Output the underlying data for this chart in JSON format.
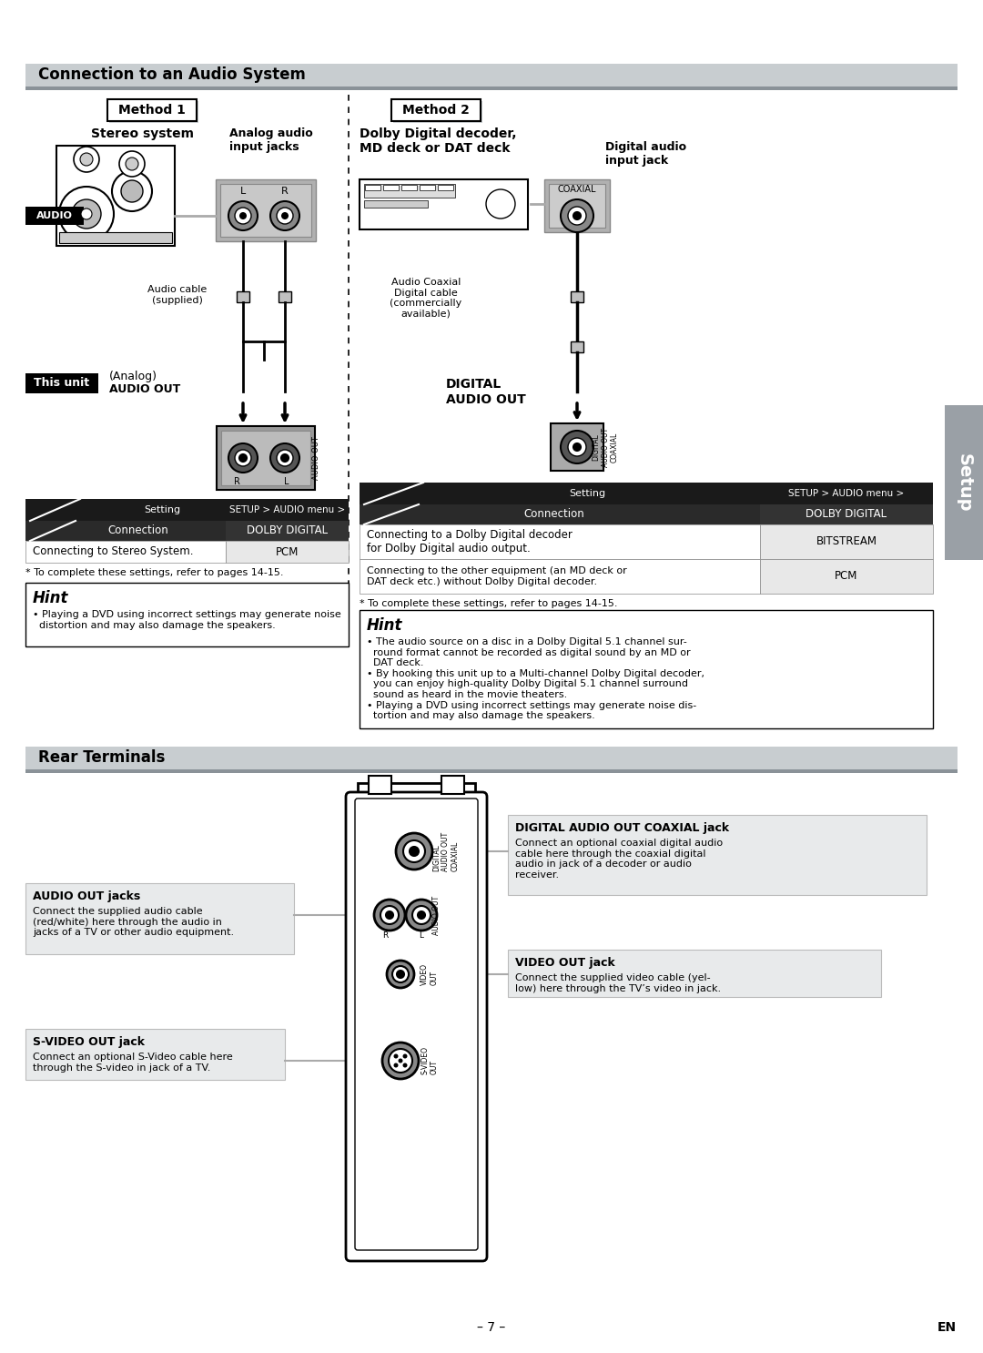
{
  "page_bg": "#ffffff",
  "section1_title": "Connection to an Audio System",
  "section2_title": "Rear Terminals",
  "method1_label": "Method 1",
  "method2_label": "Method 2",
  "stereo_system_label": "Stereo system",
  "analog_audio_label": "Analog audio\ninput jacks",
  "audio_label": "AUDIO",
  "audio_cable_label": "Audio cable\n(supplied)",
  "this_unit_label": "This unit",
  "dolby_label": "Dolby Digital decoder,\nMD deck or DAT deck",
  "digital_audio_label": "Digital audio\ninput jack",
  "coaxial_label": "COAXIAL",
  "audio_coaxial_label": "Audio Coaxial\nDigital cable\n(commercially\navailable)",
  "digital_audio_out_label": "DIGITAL\nAUDIO OUT",
  "setup_tab_label": "Setup",
  "table1_header_setting": "Setting",
  "table1_header_menu": "SETUP > AUDIO menu >",
  "table1_col1": "Connection",
  "table1_col2": "DOLBY DIGITAL",
  "table1_row1_c1": "Connecting to Stereo System.",
  "table1_row1_c2": "PCM",
  "table1_note": "* To complete these settings, refer to pages 14-15.",
  "hint1_title": "Hint",
  "hint1_bullet": "• Playing a DVD using incorrect settings may generate noise\n  distortion and may also damage the speakers.",
  "table2_header_setting": "Setting",
  "table2_header_menu": "SETUP > AUDIO menu >",
  "table2_col1": "Connection",
  "table2_col2": "DOLBY DIGITAL",
  "table2_row1_c1": "Connecting to a Dolby Digital decoder\nfor Dolby Digital audio output.",
  "table2_row1_c2": "BITSTREAM",
  "table2_row2_c1": "Connecting to the other equipment (an MD deck or\nDAT deck etc.) without Dolby Digital decoder.",
  "table2_row2_c2": "PCM",
  "table2_note": "* To complete these settings, refer to pages 14-15.",
  "hint2_title": "Hint",
  "hint2_bullet1": "• The audio source on a disc in a Dolby Digital 5.1 channel sur-\n  round format cannot be recorded as digital sound by an MD or\n  DAT deck.",
  "hint2_bullet2": "• By hooking this unit up to a Multi-channel Dolby Digital decoder,\n  you can enjoy high-quality Dolby Digital 5.1 channel surround\n  sound as heard in the movie theaters.",
  "hint2_bullet3": "• Playing a DVD using incorrect settings may generate noise dis-\n  tortion and may also damage the speakers.",
  "rear_audio_out_title": "AUDIO OUT jacks",
  "rear_audio_out_text": "Connect the supplied audio cable\n(red/white) here through the audio in\njacks of a TV or other audio equipment.",
  "rear_digital_title": "DIGITAL AUDIO OUT COAXIAL jack",
  "rear_digital_text": "Connect an optional coaxial digital audio\ncable here through the coaxial digital\naudio in jack of a decoder or audio\nreceiver.",
  "rear_video_title": "VIDEO OUT jack",
  "rear_video_text": "Connect the supplied video cable (yel-\nlow) here through the TV’s video in jack.",
  "rear_svideo_title": "S-VIDEO OUT jack",
  "rear_svideo_text": "Connect an optional S-Video cable here\nthrough the S-video in jack of a TV.",
  "page_number": "– 7 –",
  "en_label": "EN",
  "header_gray": "#c8cdd0",
  "header_dark": "#8a9298",
  "table_dark": "#1a1a1a",
  "table_mid": "#3a3a3a",
  "table_cell_bg": "#f0f0f0",
  "hint_bg": "#f8f8f8",
  "label_bg": "#e8eaeb",
  "setup_tab_color": "#9aa0a6"
}
